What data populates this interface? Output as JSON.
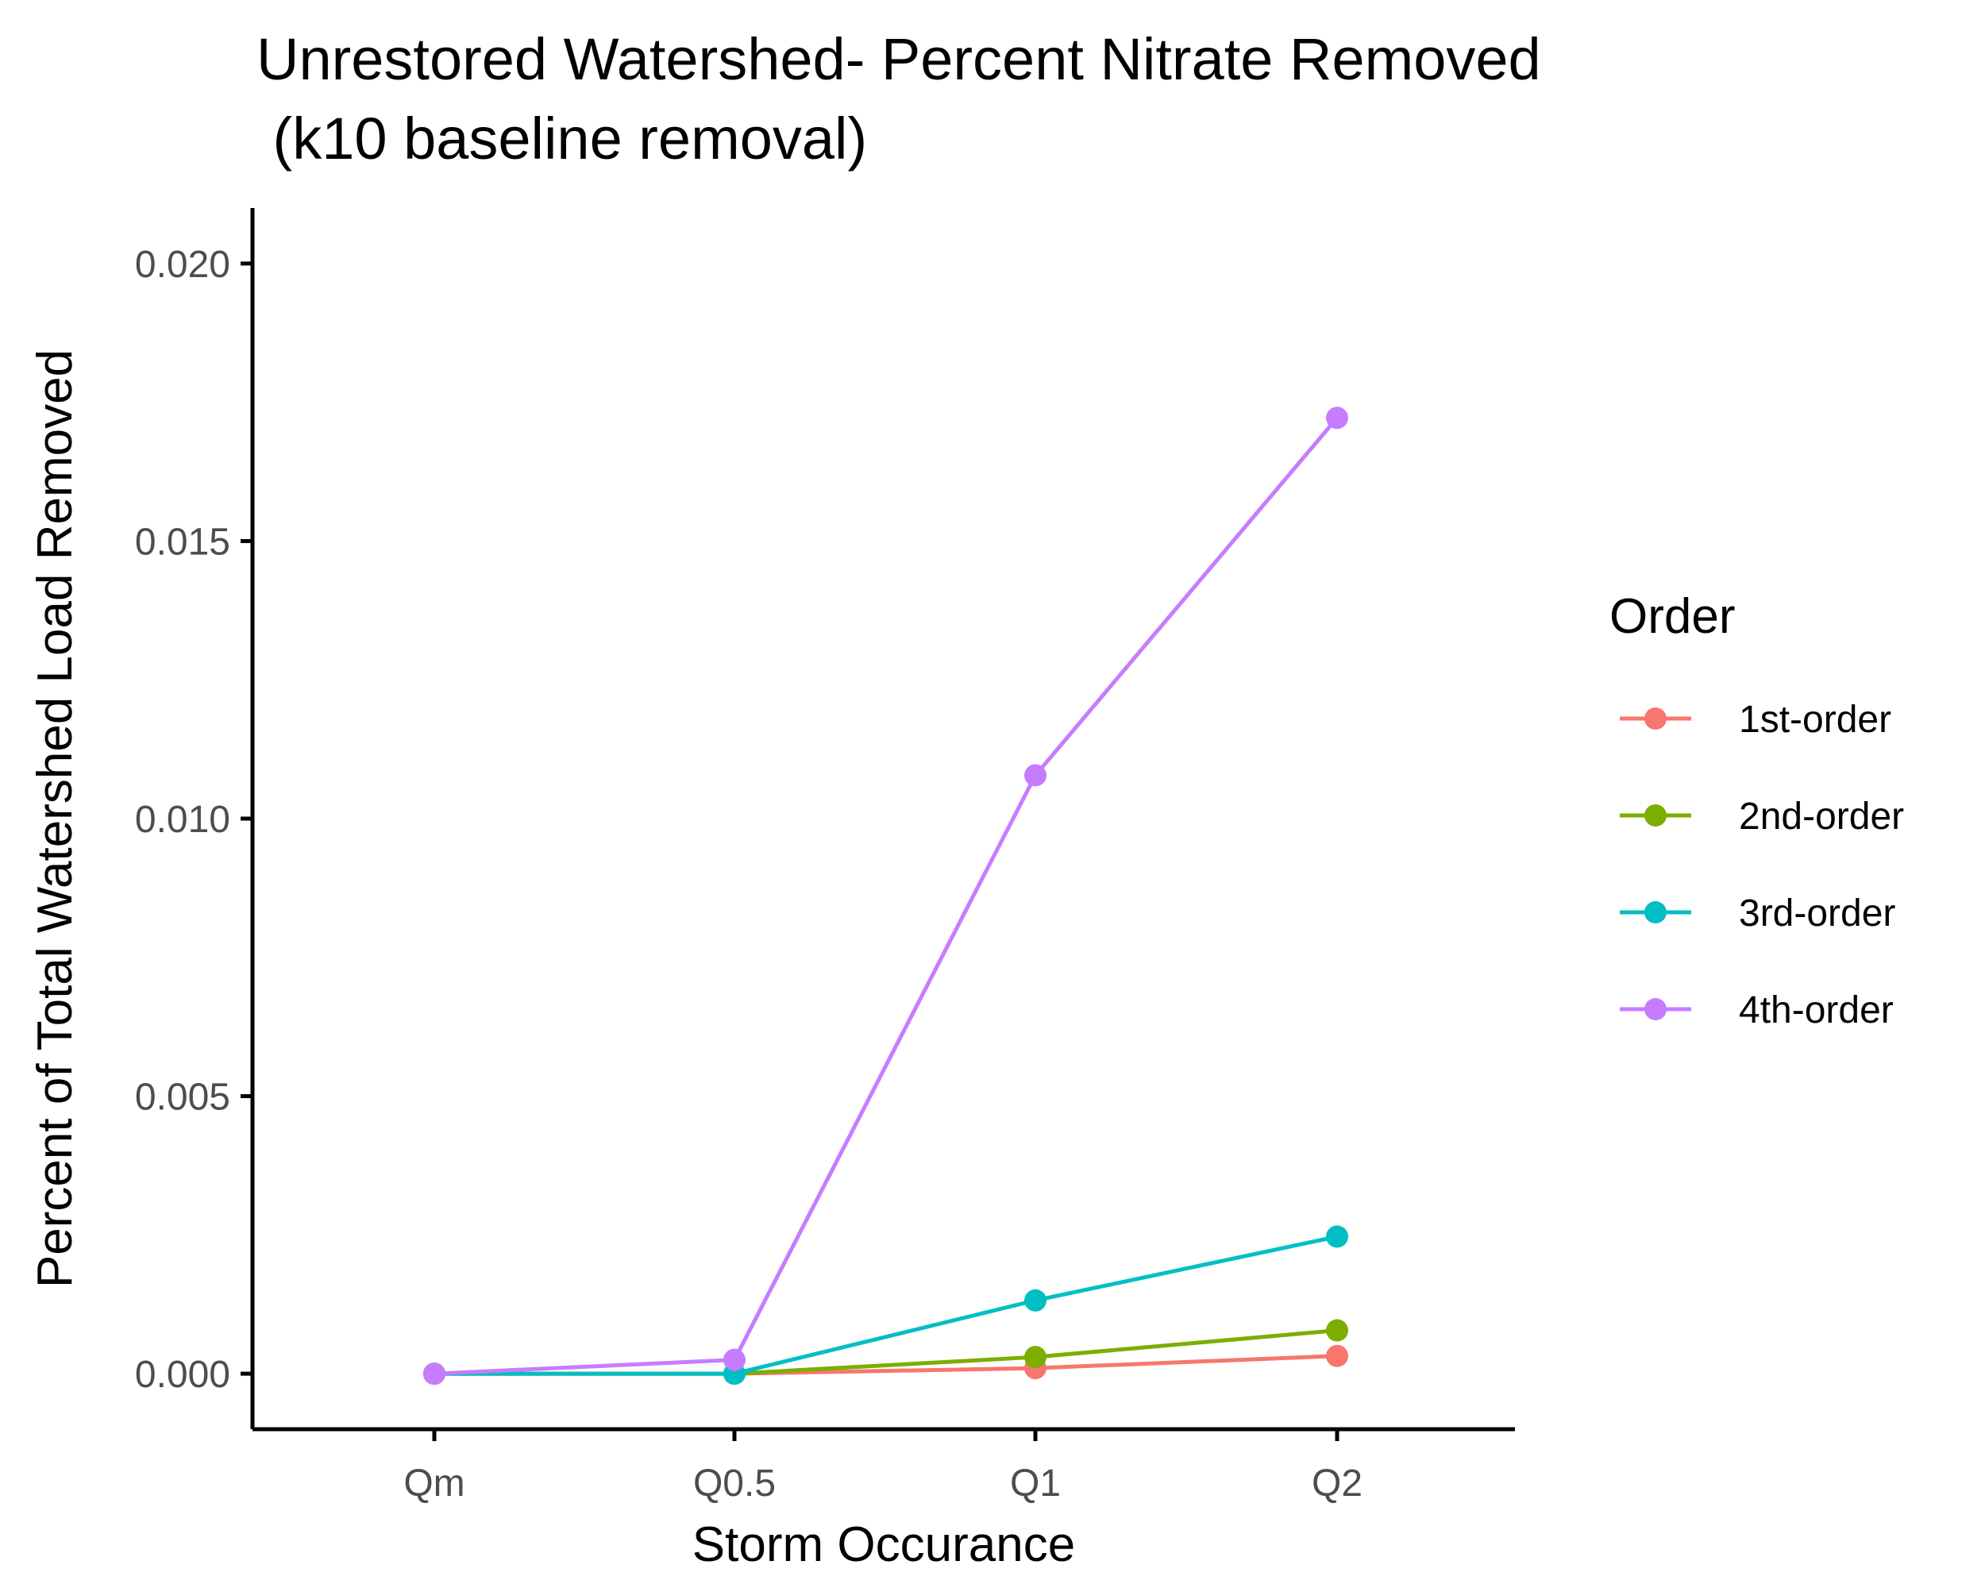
{
  "chart_data": {
    "type": "line",
    "title_line1": "Unrestored Watershed- Percent Nitrate Removed",
    "title_line2": " (k10 baseline removal)",
    "xlabel": "Storm Occurance",
    "ylabel": "Percent of Total Watershed Load Removed",
    "categories": [
      "Qm",
      "Q0.5",
      "Q1",
      "Q2"
    ],
    "ylim": [
      -0.001,
      0.021
    ],
    "yticks": [
      0.0,
      0.005,
      0.01,
      0.015,
      0.02
    ],
    "ytick_labels": [
      "0.000",
      "0.005",
      "0.010",
      "0.015",
      "0.020"
    ],
    "grid": false,
    "legend": {
      "title": "Order",
      "placement": "right"
    },
    "series": [
      {
        "name": "1st-order",
        "color": "#F8766D",
        "values": [
          0.0,
          0.0,
          0.0001,
          0.00032
        ]
      },
      {
        "name": "2nd-order",
        "color": "#7CAE00",
        "values": [
          0.0,
          0.0,
          0.0003,
          0.00078
        ]
      },
      {
        "name": "3rd-order",
        "color": "#00BFC4",
        "values": [
          0.0,
          0.0,
          0.00132,
          0.00247
        ]
      },
      {
        "name": "4th-order",
        "color": "#C77CFF",
        "values": [
          0.0,
          0.00025,
          0.01078,
          0.01722
        ]
      }
    ]
  }
}
